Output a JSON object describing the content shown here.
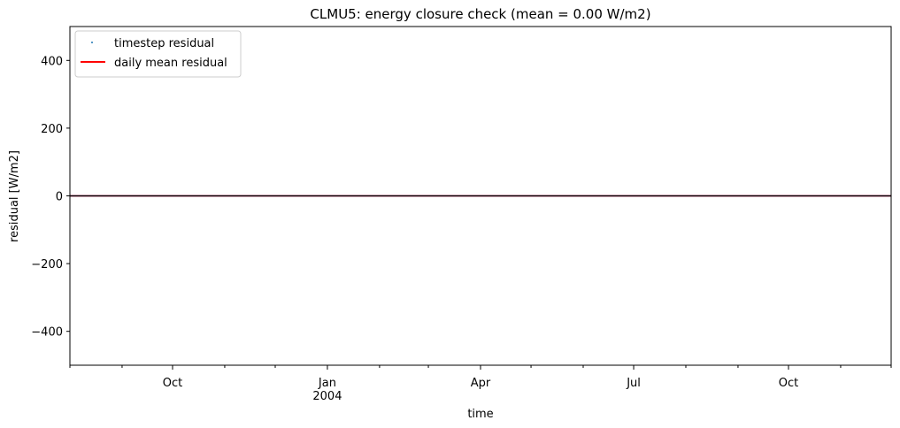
{
  "chart_data": {
    "type": "line",
    "title": "CLMU5: energy closure check (mean = 0.00 W/m2)",
    "xlabel": "time",
    "ylabel": "residual [W/m2]",
    "xlim": [
      "2003-08-01",
      "2004-12-01"
    ],
    "ylim": [
      -500,
      500
    ],
    "yticks": [
      -400,
      -200,
      0,
      200,
      400
    ],
    "ytick_labels": [
      "−400",
      "−200",
      "0",
      "200",
      "400"
    ],
    "xticks_major": [
      {
        "date": "2003-10-01",
        "label": "Oct",
        "sublabel": ""
      },
      {
        "date": "2004-01-01",
        "label": "Jan",
        "sublabel": "2004"
      },
      {
        "date": "2004-04-01",
        "label": "Apr",
        "sublabel": ""
      },
      {
        "date": "2004-07-01",
        "label": "Jul",
        "sublabel": ""
      },
      {
        "date": "2004-10-01",
        "label": "Oct",
        "sublabel": ""
      }
    ],
    "xticks_minor": [
      "2003-08-01",
      "2003-09-01",
      "2003-11-01",
      "2003-12-01",
      "2004-02-01",
      "2004-03-01",
      "2004-05-01",
      "2004-06-01",
      "2004-08-01",
      "2004-09-01",
      "2004-11-01",
      "2004-12-01"
    ],
    "series": [
      {
        "name": "timestep residual",
        "style": "points",
        "color": "#1f77b4",
        "x": [
          "2003-08-01",
          "2004-12-01"
        ],
        "y": [
          0,
          0
        ]
      },
      {
        "name": "daily mean residual",
        "style": "line",
        "color": "#ff0000",
        "x": [
          "2003-08-01",
          "2004-12-01"
        ],
        "y": [
          0,
          0
        ]
      }
    ],
    "zero_line": {
      "y": 0,
      "color": "#000000"
    },
    "legend_position": "upper-left",
    "grid": false
  }
}
